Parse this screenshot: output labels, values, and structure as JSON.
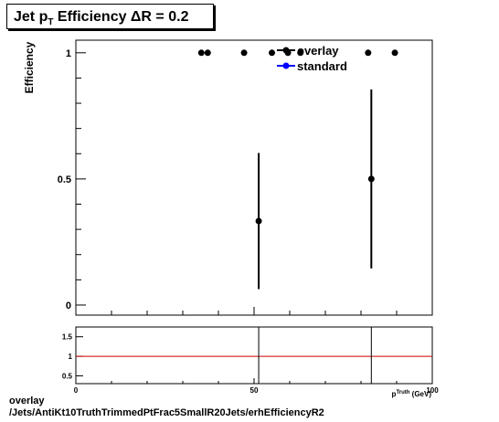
{
  "title": {
    "prefix": "Jet p",
    "subscript": "T",
    "suffix": " Efficiency  ΔR = 0.2"
  },
  "footer": {
    "line1": "overlay",
    "line2": "/Jets/AntiKt10TruthTrimmedPtFrac5SmallR20Jets/erhEfficiencyR2"
  },
  "chart_data": [
    {
      "type": "scatter",
      "ylabel": "Efficiency",
      "xlim": [
        0,
        100
      ],
      "ylim": [
        -0.04,
        1.05
      ],
      "yticks": [
        0,
        0.5,
        1
      ],
      "ytick_labels": [
        "0",
        "0.5",
        "1"
      ],
      "grid": false,
      "legend_position": "top-right",
      "series": [
        {
          "name": "overlay",
          "color": "#000000",
          "marker": "filled-circle",
          "points": [
            {
              "x": 35.2,
              "y": 1.0,
              "yerr": 0.0
            },
            {
              "x": 37.0,
              "y": 1.0,
              "yerr": 0.0
            },
            {
              "x": 47.2,
              "y": 1.0,
              "yerr": 0.0
            },
            {
              "x": 51.3,
              "y": 0.333,
              "yerr": 0.27
            },
            {
              "x": 55.0,
              "y": 1.0,
              "yerr": 0.0
            },
            {
              "x": 59.5,
              "y": 1.0,
              "yerr": 0.0
            },
            {
              "x": 63.0,
              "y": 1.0,
              "yerr": 0.0
            },
            {
              "x": 82.0,
              "y": 1.0,
              "yerr": 0.0
            },
            {
              "x": 82.9,
              "y": 0.5,
              "yerr": 0.355
            },
            {
              "x": 89.5,
              "y": 1.0,
              "yerr": 0.0
            }
          ]
        },
        {
          "name": "standard",
          "color": "#0000ff",
          "marker": "filled-circle",
          "points": []
        }
      ]
    },
    {
      "type": "line",
      "xlabel": "p_{T}^{Truth} (GeV)",
      "xlim": [
        0,
        100
      ],
      "ylim": [
        0.3,
        1.75
      ],
      "xticks": [
        0,
        50,
        100
      ],
      "xtick_labels": [
        "0",
        "50",
        "100"
      ],
      "yticks": [
        0.5,
        1,
        1.5
      ],
      "ytick_labels": [
        "0.5",
        "1",
        "1.5"
      ],
      "reference_line": {
        "y": 1,
        "color": "#cc0000"
      },
      "vertical_lines_at_x": [
        51.3,
        82.9
      ]
    }
  ]
}
